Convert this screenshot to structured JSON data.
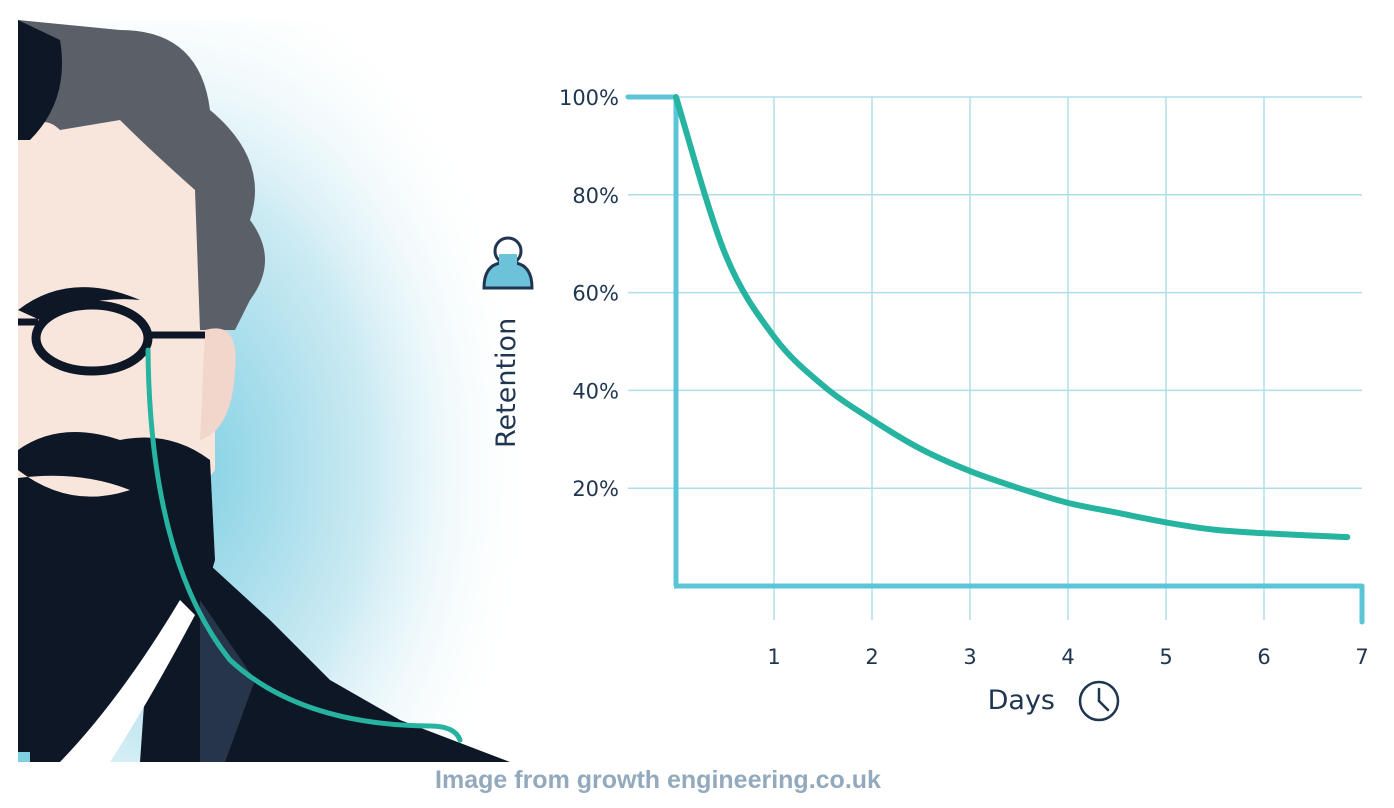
{
  "chart_data": {
    "type": "line",
    "title": "",
    "xlabel": "Days",
    "ylabel": "Retention",
    "xlim": [
      0,
      7
    ],
    "ylim": [
      0,
      100
    ],
    "x_ticks": [
      "1",
      "2",
      "3",
      "4",
      "5",
      "6",
      "7"
    ],
    "y_ticks": [
      "20%",
      "40%",
      "60%",
      "80%",
      "100%"
    ],
    "grid": true,
    "legend": "none",
    "x_icon": "clock-icon",
    "y_icon": "person-icon",
    "series": [
      {
        "x": [
          0,
          0.5,
          1,
          1.5,
          2,
          2.5,
          3,
          3.5,
          4,
          4.5,
          5,
          5.5,
          6,
          6.5,
          6.85
        ],
        "values": [
          100,
          68,
          51,
          41,
          34,
          28,
          23.5,
          20,
          17,
          15,
          13,
          11.5,
          10.8,
          10.3,
          10
        ],
        "color": "#26b3a0"
      }
    ],
    "colors": {
      "curve": "#26b3a0",
      "axis": "#5bc5d8",
      "grid": "#aedfe9",
      "text": "#1f3550"
    }
  },
  "credit": "Image from growth engineering.co.uk"
}
